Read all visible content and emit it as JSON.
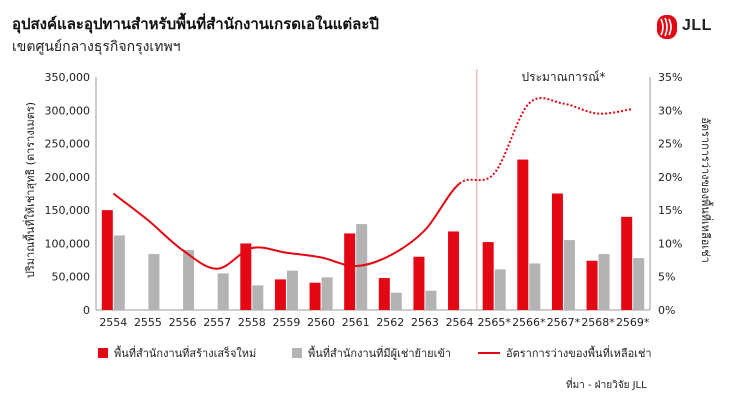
{
  "title": "อุปสงค์และอุปทานสำหรับพื้นที่สำนักงานเกรดเอในแต่ละปี",
  "subtitle": "เขตศูนย์กลางธุรกิจกรุงเทพฯ",
  "logo_text": "JLL",
  "source": "ที่มา - ฝ่ายวิจัย JLL",
  "colors": {
    "supply": "#e30613",
    "absorption": "#b3b3b3",
    "vacancy": "#e30613",
    "logo": "#e30613"
  },
  "chart_data": {
    "type": "bar",
    "title": "อุปสงค์และอุปทานสำหรับพื้นที่สำนักงานเกรดเอในแต่ละปี",
    "subtitle": "เขตศูนย์กลางธุรกิจกรุงเทพฯ",
    "categories": [
      "2554",
      "2555",
      "2556",
      "2557",
      "2558",
      "2559",
      "2560",
      "2561",
      "2562",
      "2563",
      "2564",
      "2565*",
      "2566*",
      "2567*",
      "2568*",
      "2569*"
    ],
    "ylabel": "ปริมาณพื้นที่ให้เช่าสุทธิ (ตารางเมตร)",
    "y2label": "อัตราการว่างของพื้นที่เหลือเช่า",
    "ylim": [
      0,
      350000
    ],
    "y2lim": [
      0,
      35
    ],
    "yticks": [
      "0",
      "50,000",
      "100,000",
      "150,000",
      "200,000",
      "250,000",
      "300,000",
      "350,000"
    ],
    "y2ticks": [
      "0%",
      "5%",
      "10%",
      "15%",
      "20%",
      "25%",
      "30%",
      "35%"
    ],
    "forecast_label": "ประมาณการณ์*",
    "forecast_start_index": 11,
    "legend_position": "bottom",
    "grid": false,
    "series": [
      {
        "name": "พื้นที่สำนักงานที่สร้างเสร็จใหม่",
        "type": "bar",
        "values": [
          150000,
          0,
          0,
          0,
          100000,
          46000,
          41000,
          115000,
          48000,
          80000,
          118000,
          102000,
          226000,
          175000,
          74000,
          140000
        ]
      },
      {
        "name": "พื้นที่สำนักงานที่มีผู้เช่าย้ายเข้า",
        "type": "bar",
        "values": [
          112000,
          84000,
          90000,
          55000,
          37000,
          59000,
          49000,
          129000,
          26000,
          29000,
          0,
          61000,
          70000,
          105000,
          84000,
          78000
        ]
      },
      {
        "name": "อัตราการว่างของพื้นที่เหลือเช่า",
        "type": "line",
        "axis": "right",
        "values": [
          17.5,
          13.5,
          9,
          6.2,
          9.3,
          8.6,
          7.9,
          6.6,
          8.2,
          12,
          19,
          20.5,
          31,
          31,
          29.5,
          30.2
        ]
      }
    ]
  }
}
